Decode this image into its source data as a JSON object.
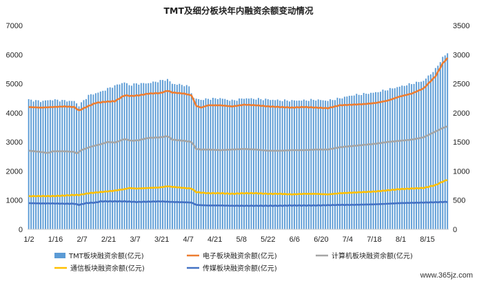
{
  "chart_data": {
    "type": "bar",
    "title": "TMT及细分板块年内融资余额变动情况",
    "x_tick_labels": [
      "1/2",
      "1/16",
      "2/7",
      "2/21",
      "3/7",
      "3/21",
      "4/7",
      "4/21",
      "5/8",
      "5/22",
      "6/6",
      "6/20",
      "7/4",
      "7/18",
      "8/1",
      "8/15"
    ],
    "y_left": {
      "min": 0,
      "max": 7000,
      "ticks": [
        0,
        1000,
        2000,
        3000,
        4000,
        5000,
        6000,
        7000
      ]
    },
    "y_right": {
      "min": 0,
      "max": 3500,
      "ticks": [
        0,
        500,
        1000,
        1500,
        2000,
        2500,
        3000,
        3500
      ]
    },
    "grid": false,
    "legend_position": "bottom",
    "series": [
      {
        "name": "TMT板块融资余额(亿元)",
        "type": "bar",
        "axis": "left",
        "color": "#5B9BD5",
        "anchors": [
          [
            0,
            4450
          ],
          [
            5,
            4400
          ],
          [
            10,
            4450
          ],
          [
            15,
            4420
          ],
          [
            19,
            4400
          ],
          [
            21,
            4250
          ],
          [
            25,
            4600
          ],
          [
            30,
            4720
          ],
          [
            35,
            4900
          ],
          [
            40,
            5050
          ],
          [
            42,
            4950
          ],
          [
            45,
            5000
          ],
          [
            50,
            5020
          ],
          [
            55,
            5100
          ],
          [
            58,
            5150
          ],
          [
            60,
            5000
          ],
          [
            65,
            4950
          ],
          [
            67,
            4900
          ],
          [
            69,
            4500
          ],
          [
            72,
            4450
          ],
          [
            75,
            4480
          ],
          [
            80,
            4500
          ],
          [
            85,
            4420
          ],
          [
            90,
            4500
          ],
          [
            95,
            4480
          ],
          [
            100,
            4460
          ],
          [
            105,
            4430
          ],
          [
            110,
            4420
          ],
          [
            115,
            4430
          ],
          [
            120,
            4450
          ],
          [
            125,
            4420
          ],
          [
            130,
            4500
          ],
          [
            135,
            4600
          ],
          [
            140,
            4650
          ],
          [
            145,
            4700
          ],
          [
            150,
            4800
          ],
          [
            155,
            4900
          ],
          [
            160,
            5000
          ],
          [
            165,
            5100
          ],
          [
            170,
            5500
          ],
          [
            173,
            5900
          ],
          [
            175,
            6050
          ]
        ]
      },
      {
        "name": "电子板块融资余额(亿元)",
        "type": "line",
        "axis": "right",
        "color": "#ED7D31",
        "anchors": [
          [
            0,
            2100
          ],
          [
            5,
            2090
          ],
          [
            10,
            2100
          ],
          [
            15,
            2110
          ],
          [
            19,
            2100
          ],
          [
            21,
            2040
          ],
          [
            24,
            2100
          ],
          [
            28,
            2170
          ],
          [
            32,
            2190
          ],
          [
            36,
            2200
          ],
          [
            40,
            2300
          ],
          [
            43,
            2290
          ],
          [
            46,
            2300
          ],
          [
            50,
            2330
          ],
          [
            55,
            2340
          ],
          [
            58,
            2380
          ],
          [
            60,
            2350
          ],
          [
            65,
            2330
          ],
          [
            68,
            2300
          ],
          [
            70,
            2120
          ],
          [
            72,
            2090
          ],
          [
            75,
            2130
          ],
          [
            80,
            2130
          ],
          [
            85,
            2110
          ],
          [
            90,
            2140
          ],
          [
            95,
            2130
          ],
          [
            100,
            2110
          ],
          [
            105,
            2100
          ],
          [
            110,
            2090
          ],
          [
            115,
            2100
          ],
          [
            120,
            2090
          ],
          [
            125,
            2080
          ],
          [
            130,
            2130
          ],
          [
            135,
            2140
          ],
          [
            140,
            2150
          ],
          [
            145,
            2170
          ],
          [
            150,
            2210
          ],
          [
            155,
            2280
          ],
          [
            160,
            2330
          ],
          [
            165,
            2420
          ],
          [
            170,
            2630
          ],
          [
            173,
            2850
          ],
          [
            175,
            2940
          ]
        ]
      },
      {
        "name": "计算机板块融资余额(亿元)",
        "type": "line",
        "axis": "right",
        "color": "#A5A5A5",
        "anchors": [
          [
            0,
            1350
          ],
          [
            5,
            1330
          ],
          [
            8,
            1310
          ],
          [
            10,
            1340
          ],
          [
            15,
            1340
          ],
          [
            19,
            1330
          ],
          [
            20,
            1300
          ],
          [
            22,
            1360
          ],
          [
            26,
            1420
          ],
          [
            30,
            1460
          ],
          [
            33,
            1500
          ],
          [
            36,
            1490
          ],
          [
            40,
            1550
          ],
          [
            43,
            1520
          ],
          [
            46,
            1530
          ],
          [
            50,
            1570
          ],
          [
            55,
            1580
          ],
          [
            58,
            1600
          ],
          [
            60,
            1540
          ],
          [
            65,
            1520
          ],
          [
            68,
            1500
          ],
          [
            70,
            1380
          ],
          [
            72,
            1370
          ],
          [
            75,
            1370
          ],
          [
            80,
            1360
          ],
          [
            85,
            1370
          ],
          [
            90,
            1380
          ],
          [
            95,
            1370
          ],
          [
            100,
            1350
          ],
          [
            105,
            1350
          ],
          [
            110,
            1360
          ],
          [
            115,
            1360
          ],
          [
            120,
            1370
          ],
          [
            125,
            1370
          ],
          [
            130,
            1410
          ],
          [
            135,
            1430
          ],
          [
            140,
            1450
          ],
          [
            145,
            1470
          ],
          [
            150,
            1500
          ],
          [
            155,
            1520
          ],
          [
            160,
            1540
          ],
          [
            165,
            1580
          ],
          [
            170,
            1680
          ],
          [
            173,
            1740
          ],
          [
            175,
            1770
          ]
        ]
      },
      {
        "name": "通信板块融资余额(亿元)",
        "type": "line",
        "axis": "right",
        "color": "#FFC000",
        "anchors": [
          [
            0,
            570
          ],
          [
            5,
            570
          ],
          [
            10,
            570
          ],
          [
            15,
            580
          ],
          [
            19,
            590
          ],
          [
            21,
            590
          ],
          [
            25,
            620
          ],
          [
            30,
            640
          ],
          [
            35,
            660
          ],
          [
            40,
            690
          ],
          [
            42,
            710
          ],
          [
            45,
            700
          ],
          [
            50,
            710
          ],
          [
            55,
            720
          ],
          [
            58,
            740
          ],
          [
            60,
            730
          ],
          [
            65,
            710
          ],
          [
            68,
            700
          ],
          [
            70,
            640
          ],
          [
            72,
            630
          ],
          [
            75,
            620
          ],
          [
            80,
            620
          ],
          [
            85,
            610
          ],
          [
            90,
            620
          ],
          [
            95,
            620
          ],
          [
            100,
            610
          ],
          [
            105,
            610
          ],
          [
            110,
            600
          ],
          [
            115,
            610
          ],
          [
            120,
            610
          ],
          [
            125,
            600
          ],
          [
            130,
            620
          ],
          [
            135,
            630
          ],
          [
            140,
            640
          ],
          [
            145,
            650
          ],
          [
            150,
            670
          ],
          [
            155,
            690
          ],
          [
            160,
            700
          ],
          [
            165,
            710
          ],
          [
            170,
            760
          ],
          [
            173,
            820
          ],
          [
            175,
            850
          ]
        ]
      },
      {
        "name": "传媒板块融资余额(亿元)",
        "type": "line",
        "axis": "right",
        "color": "#4472C4",
        "anchors": [
          [
            0,
            450
          ],
          [
            5,
            445
          ],
          [
            10,
            445
          ],
          [
            15,
            440
          ],
          [
            19,
            440
          ],
          [
            21,
            420
          ],
          [
            24,
            450
          ],
          [
            28,
            460
          ],
          [
            30,
            480
          ],
          [
            35,
            480
          ],
          [
            40,
            480
          ],
          [
            45,
            470
          ],
          [
            50,
            475
          ],
          [
            55,
            480
          ],
          [
            60,
            470
          ],
          [
            65,
            465
          ],
          [
            68,
            460
          ],
          [
            70,
            420
          ],
          [
            72,
            415
          ],
          [
            75,
            410
          ],
          [
            80,
            410
          ],
          [
            85,
            405
          ],
          [
            90,
            405
          ],
          [
            95,
            405
          ],
          [
            100,
            405
          ],
          [
            105,
            405
          ],
          [
            110,
            410
          ],
          [
            115,
            410
          ],
          [
            120,
            410
          ],
          [
            125,
            415
          ],
          [
            130,
            420
          ],
          [
            135,
            420
          ],
          [
            140,
            425
          ],
          [
            145,
            430
          ],
          [
            150,
            440
          ],
          [
            155,
            450
          ],
          [
            160,
            455
          ],
          [
            165,
            460
          ],
          [
            170,
            465
          ],
          [
            173,
            470
          ],
          [
            175,
            470
          ]
        ]
      }
    ]
  },
  "watermark": "www.365jz.com"
}
